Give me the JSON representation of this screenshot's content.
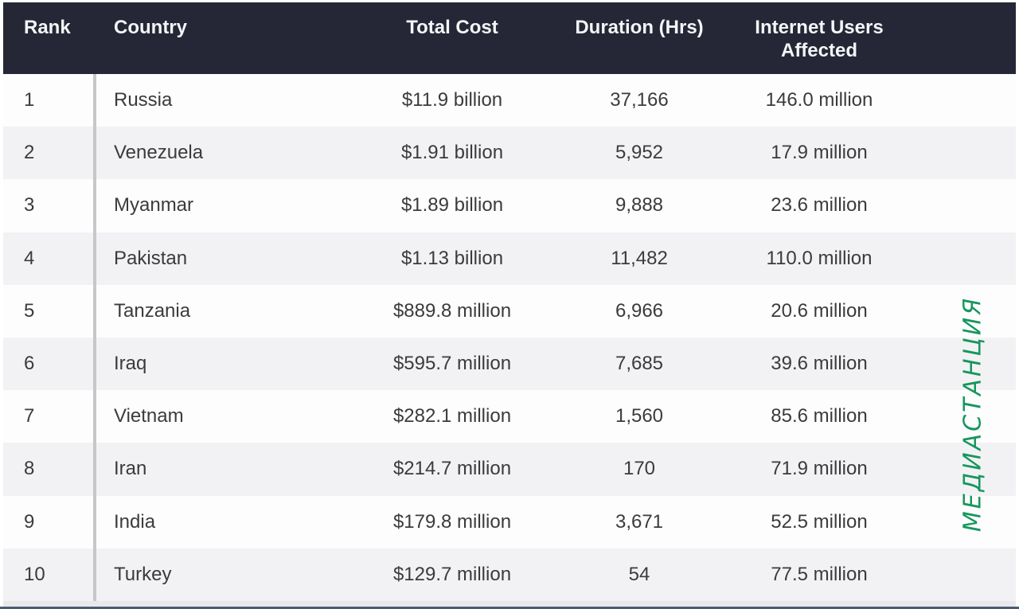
{
  "table": {
    "columns": [
      {
        "key": "rank",
        "label": "Rank"
      },
      {
        "key": "country",
        "label": "Country"
      },
      {
        "key": "total_cost",
        "label": "Total Cost"
      },
      {
        "key": "duration_hrs",
        "label": "Duration (Hrs)"
      },
      {
        "key": "users_affected",
        "label": "Internet Users Affected"
      }
    ],
    "rows": [
      {
        "rank": "1",
        "country": "Russia",
        "total_cost": "$11.9 billion",
        "duration_hrs": "37,166",
        "users_affected": "146.0 million"
      },
      {
        "rank": "2",
        "country": "Venezuela",
        "total_cost": "$1.91 billion",
        "duration_hrs": "5,952",
        "users_affected": "17.9 million"
      },
      {
        "rank": "3",
        "country": "Myanmar",
        "total_cost": "$1.89 billion",
        "duration_hrs": "9,888",
        "users_affected": "23.6 million"
      },
      {
        "rank": "4",
        "country": "Pakistan",
        "total_cost": "$1.13 billion",
        "duration_hrs": "11,482",
        "users_affected": "110.0 million"
      },
      {
        "rank": "5",
        "country": "Tanzania",
        "total_cost": "$889.8 million",
        "duration_hrs": "6,966",
        "users_affected": "20.6 million"
      },
      {
        "rank": "6",
        "country": "Iraq",
        "total_cost": "$595.7 million",
        "duration_hrs": "7,685",
        "users_affected": "39.6 million"
      },
      {
        "rank": "7",
        "country": "Vietnam",
        "total_cost": "$282.1 million",
        "duration_hrs": "1,560",
        "users_affected": "85.6 million"
      },
      {
        "rank": "8",
        "country": "Iran",
        "total_cost": "$214.7 million",
        "duration_hrs": "170",
        "users_affected": "71.9 million"
      },
      {
        "rank": "9",
        "country": "India",
        "total_cost": "$179.8 million",
        "duration_hrs": "3,671",
        "users_affected": "52.5 million"
      },
      {
        "rank": "10",
        "country": "Turkey",
        "total_cost": "$129.7 million",
        "duration_hrs": "54",
        "users_affected": "77.5 million"
      }
    ]
  },
  "watermark": {
    "text": "МЕДИАСТАНЦИЯ",
    "color": "#17965e"
  },
  "colors": {
    "header_bg": "#252736",
    "header_text": "#f4f5f7",
    "row_bg": "#fdfdfd",
    "row_alt_bg": "#f2f2f4",
    "body_text": "#3b3b3d",
    "column_divider": "#c7c7c9",
    "bottom_line": "#4e5a74"
  }
}
